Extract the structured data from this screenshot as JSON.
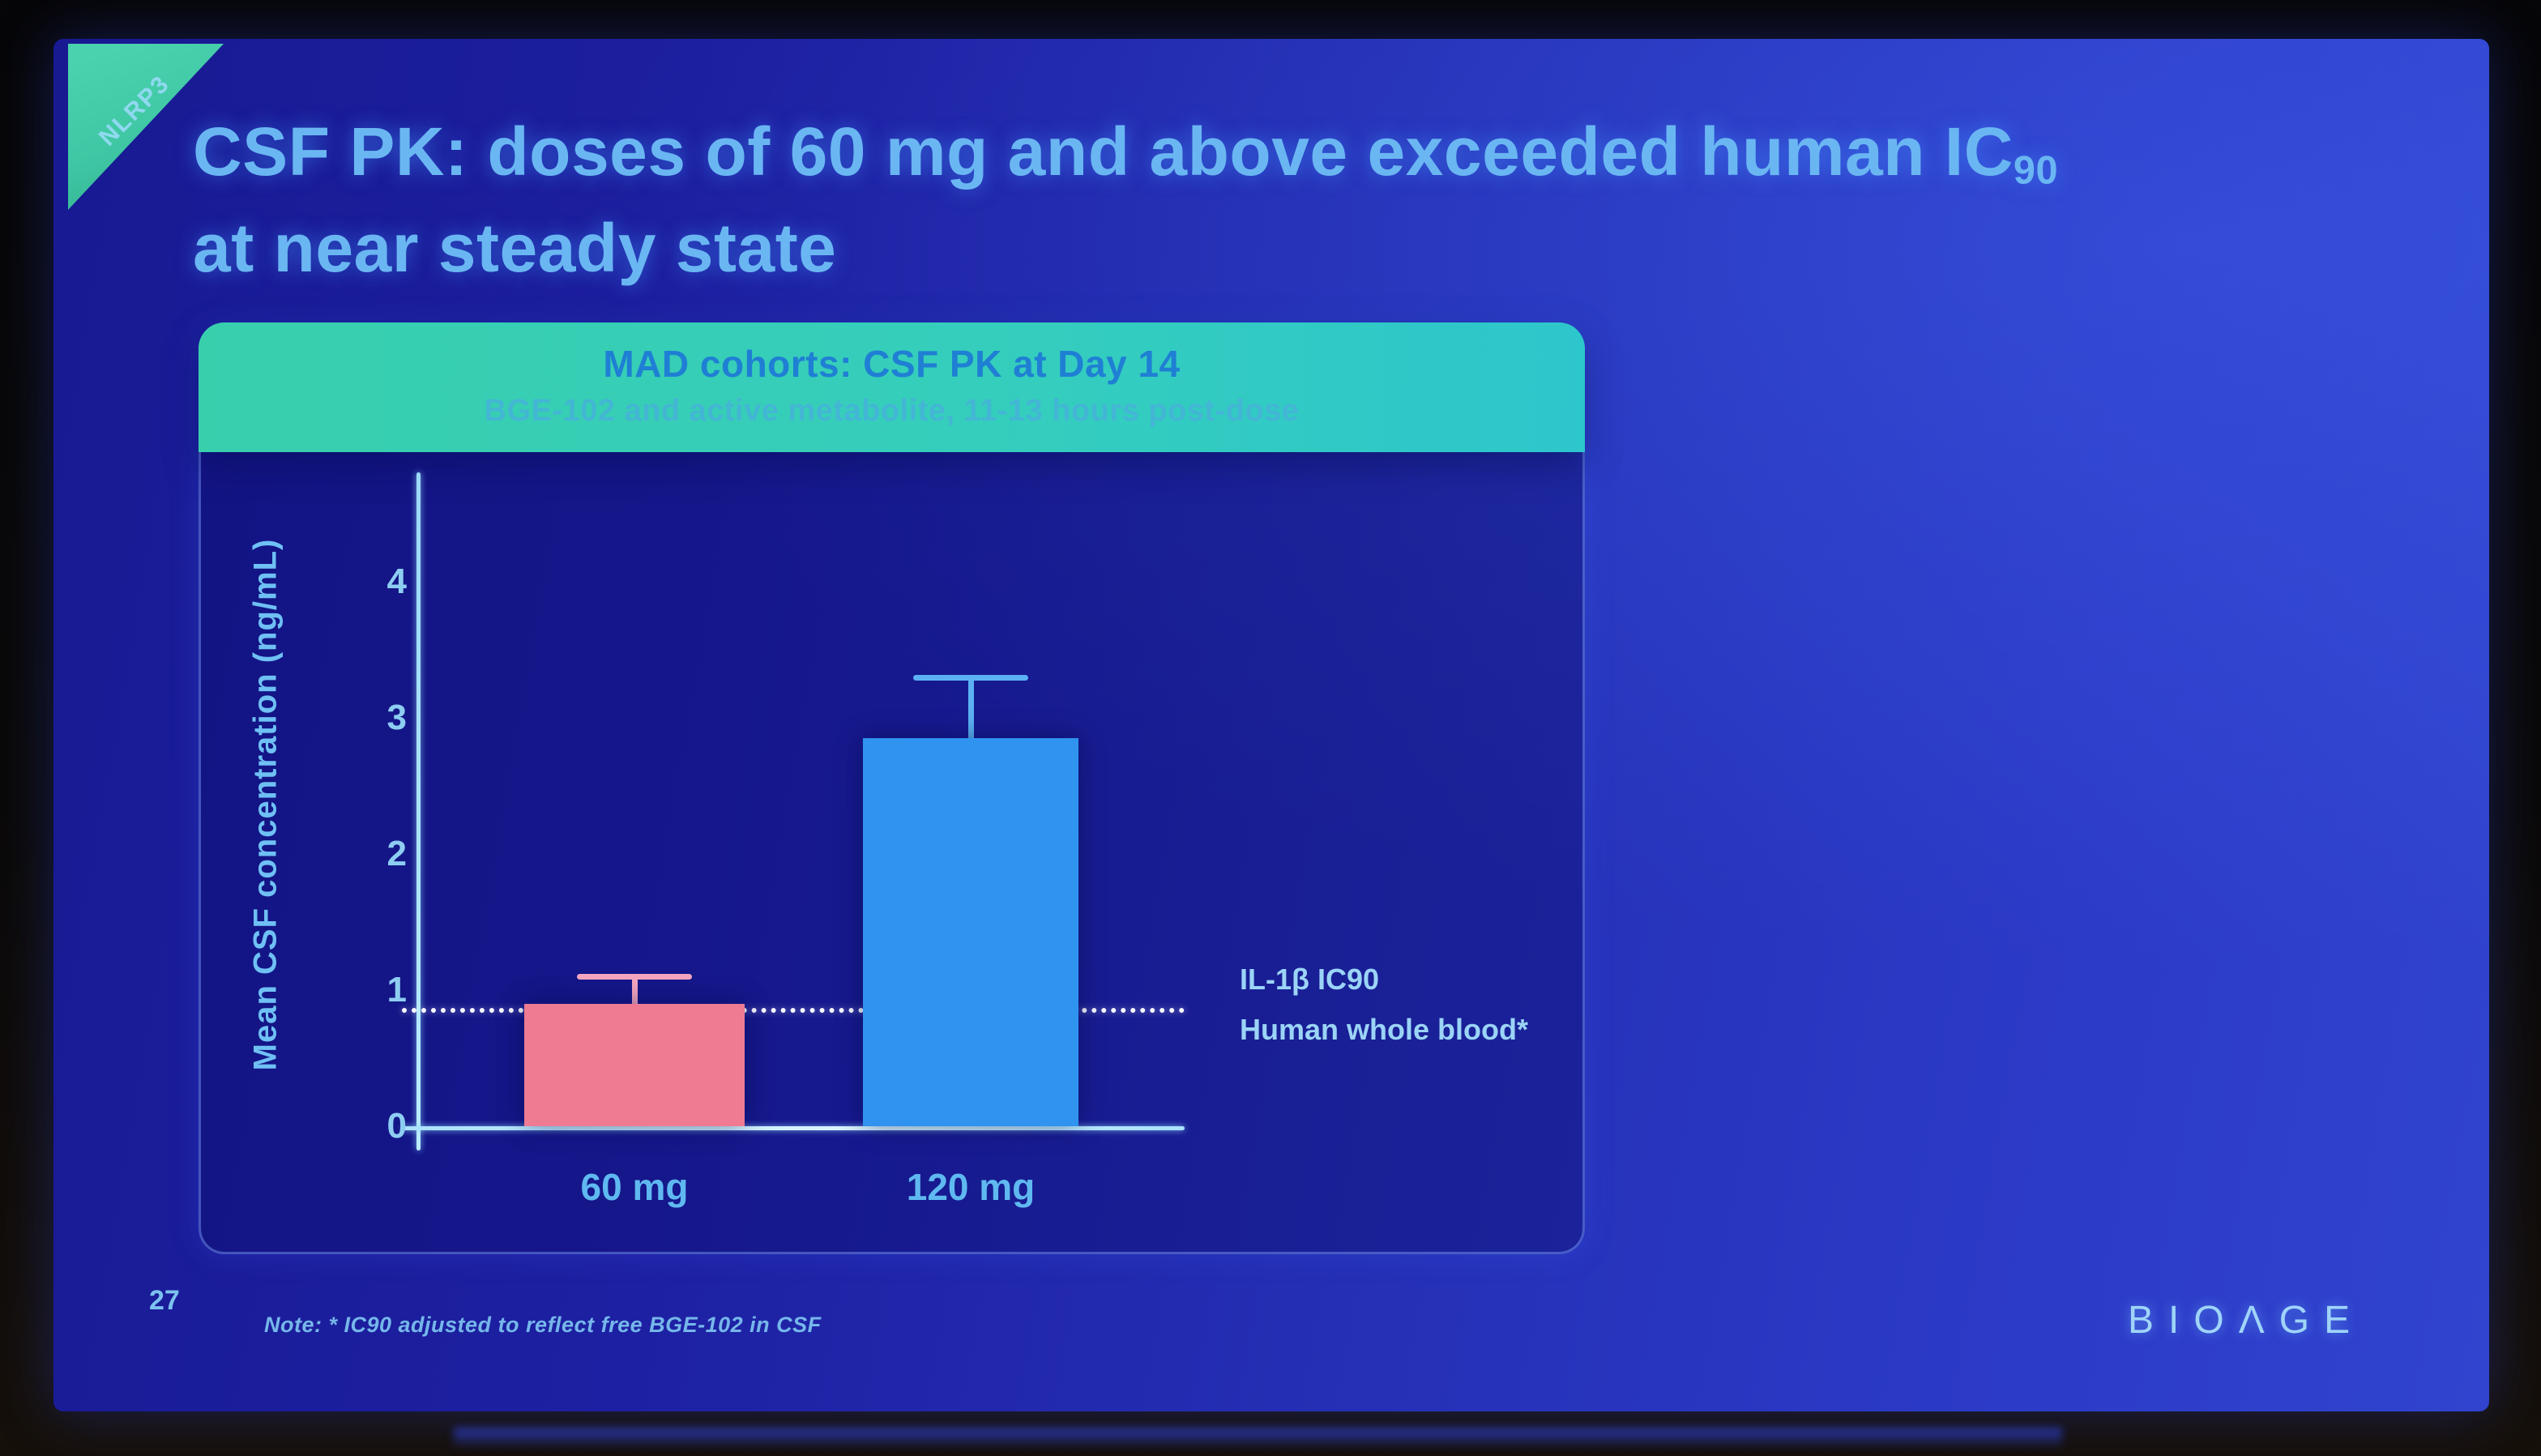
{
  "slide": {
    "corner_tag": "NLRP3",
    "title": {
      "line1": "CSF PK: doses of 60 mg and above exceeded human IC",
      "line1_sub": "90",
      "line2": "at near steady state"
    },
    "footer": {
      "page_number": "27",
      "note": "Note: * IC90 adjusted to reflect free BGE-102 in CSF",
      "logo": "BIOΛGE"
    }
  },
  "panel": {
    "header": {
      "title": "MAD cohorts: CSF PK at Day 14",
      "subtitle": "BGE-102 and active metabolite, 11-13 hours post-dose"
    }
  },
  "chart_data": {
    "type": "bar",
    "title": "MAD cohorts: CSF PK at Day 14",
    "subtitle": "BGE-102 and active metabolite, 11-13 hours post-dose",
    "categories": [
      "60 mg",
      "120 mg"
    ],
    "values": [
      0.9,
      2.85
    ],
    "error_upper": [
      1.1,
      3.3
    ],
    "bar_colors": [
      "#ee7b92",
      "#2f93ef"
    ],
    "error_colors": [
      "#f4a6c0",
      "#5cb1f4"
    ],
    "xlabel": "",
    "ylabel": "Mean CSF concentration (ng/mL)",
    "yticks": [
      0,
      1,
      2,
      3,
      4
    ],
    "ylim": [
      0,
      4.75
    ],
    "grid": false,
    "legend": "none",
    "threshold_line": {
      "value": 0.85,
      "style": "dotted",
      "color": "#f6f7ff",
      "label_line1": "IL-1β IC90",
      "label_line2": "Human whole blood*"
    }
  },
  "colors": {
    "slide_bg_left": "#181a92",
    "slide_bg_right": "#3044cf",
    "corner_tag_bg": "#3fc7a4",
    "title_text": "#6ab6f2",
    "panel_header_left": "#38cfad",
    "panel_header_right": "#2dc6cc",
    "panel_header_title": "#1f7fd4",
    "panel_header_subtitle": "#45b4d8",
    "axis": "#a8e2ff",
    "tick_text": "#8ecdf2",
    "logo_text": "#9fd4f8"
  }
}
